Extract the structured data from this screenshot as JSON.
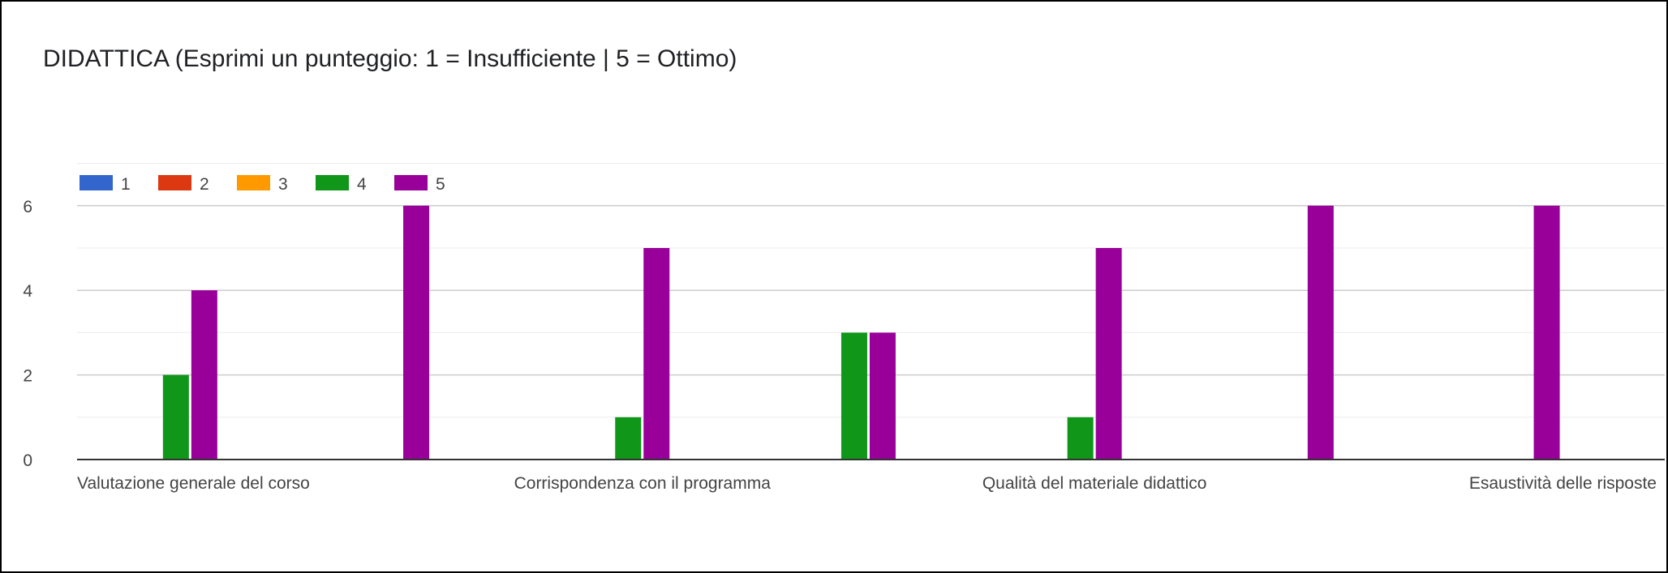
{
  "chart_data": {
    "type": "bar",
    "title": "DIDATTICA (Esprimi un punteggio: 1 = Insufficiente | 5 = Ottimo)",
    "xlabel": "",
    "ylabel": "",
    "ylim": [
      0,
      7
    ],
    "yticks": [
      0,
      2,
      4,
      6
    ],
    "grid": true,
    "legend": "top-left",
    "categories": [
      "Valutazione generale del corso",
      "",
      "Corrispondenza con il programma",
      "",
      "Qualità del materiale didattico",
      "",
      "Esaustività delle risposte"
    ],
    "series": [
      {
        "name": "1",
        "color": "#3366cc",
        "values": [
          0,
          0,
          0,
          0,
          0,
          0,
          0
        ]
      },
      {
        "name": "2",
        "color": "#dc3912",
        "values": [
          0,
          0,
          0,
          0,
          0,
          0,
          0
        ]
      },
      {
        "name": "3",
        "color": "#ff9900",
        "values": [
          0,
          0,
          0,
          0,
          0,
          0,
          0
        ]
      },
      {
        "name": "4",
        "color": "#109618",
        "values": [
          2,
          0,
          1,
          3,
          1,
          0,
          0
        ]
      },
      {
        "name": "5",
        "color": "#990099",
        "values": [
          4,
          6,
          5,
          3,
          5,
          6,
          6
        ]
      }
    ]
  }
}
